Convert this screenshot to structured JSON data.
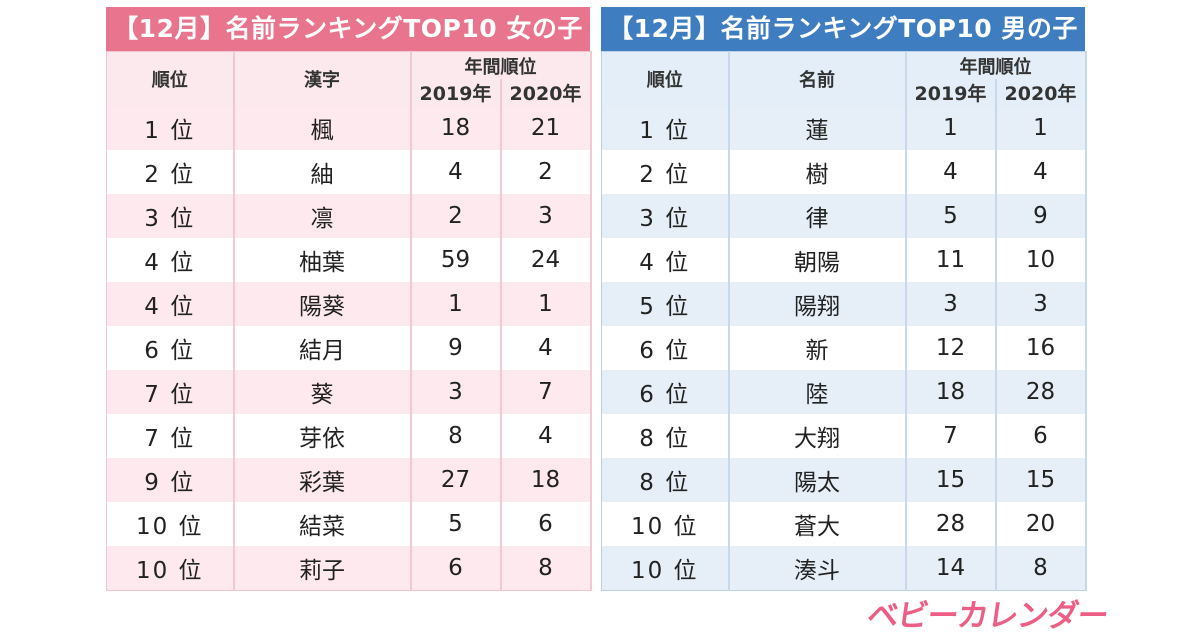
{
  "girls": {
    "title": "【12月】名前ランキングTOP10 女の子",
    "headers": {
      "rank": "順位",
      "name": "漢字",
      "annual": "年間順位",
      "y2019": "2019年",
      "y2020": "2020年"
    },
    "rows": [
      {
        "rank": "1 位",
        "name": "楓",
        "y2019": "18",
        "y2020": "21"
      },
      {
        "rank": "2 位",
        "name": "紬",
        "y2019": "4",
        "y2020": "2"
      },
      {
        "rank": "3 位",
        "name": "凛",
        "y2019": "2",
        "y2020": "3"
      },
      {
        "rank": "4 位",
        "name": "柚葉",
        "y2019": "59",
        "y2020": "24"
      },
      {
        "rank": "4 位",
        "name": "陽葵",
        "y2019": "1",
        "y2020": "1"
      },
      {
        "rank": "6 位",
        "name": "結月",
        "y2019": "9",
        "y2020": "4"
      },
      {
        "rank": "7 位",
        "name": "葵",
        "y2019": "3",
        "y2020": "7"
      },
      {
        "rank": "7 位",
        "name": "芽依",
        "y2019": "8",
        "y2020": "4"
      },
      {
        "rank": "9 位",
        "name": "彩葉",
        "y2019": "27",
        "y2020": "18"
      },
      {
        "rank": "10 位",
        "name": "結菜",
        "y2019": "5",
        "y2020": "6"
      },
      {
        "rank": "10 位",
        "name": "莉子",
        "y2019": "6",
        "y2020": "8"
      }
    ]
  },
  "boys": {
    "title": "【12月】名前ランキングTOP10 男の子",
    "headers": {
      "rank": "順位",
      "name": "名前",
      "annual": "年間順位",
      "y2019": "2019年",
      "y2020": "2020年"
    },
    "rows": [
      {
        "rank": "1 位",
        "name": "蓮",
        "y2019": "1",
        "y2020": "1"
      },
      {
        "rank": "2 位",
        "name": "樹",
        "y2019": "4",
        "y2020": "4"
      },
      {
        "rank": "3 位",
        "name": "律",
        "y2019": "5",
        "y2020": "9"
      },
      {
        "rank": "4 位",
        "name": "朝陽",
        "y2019": "11",
        "y2020": "10"
      },
      {
        "rank": "5 位",
        "name": "陽翔",
        "y2019": "3",
        "y2020": "3"
      },
      {
        "rank": "6 位",
        "name": "新",
        "y2019": "12",
        "y2020": "16"
      },
      {
        "rank": "6 位",
        "name": "陸",
        "y2019": "18",
        "y2020": "28"
      },
      {
        "rank": "8 位",
        "name": "大翔",
        "y2019": "7",
        "y2020": "6"
      },
      {
        "rank": "8 位",
        "name": "陽太",
        "y2019": "15",
        "y2020": "15"
      },
      {
        "rank": "10 位",
        "name": "蒼大",
        "y2019": "28",
        "y2020": "20"
      },
      {
        "rank": "10 位",
        "name": "湊斗",
        "y2019": "14",
        "y2020": "8"
      }
    ]
  },
  "logo": {
    "text": "ベビーカレンダー"
  }
}
